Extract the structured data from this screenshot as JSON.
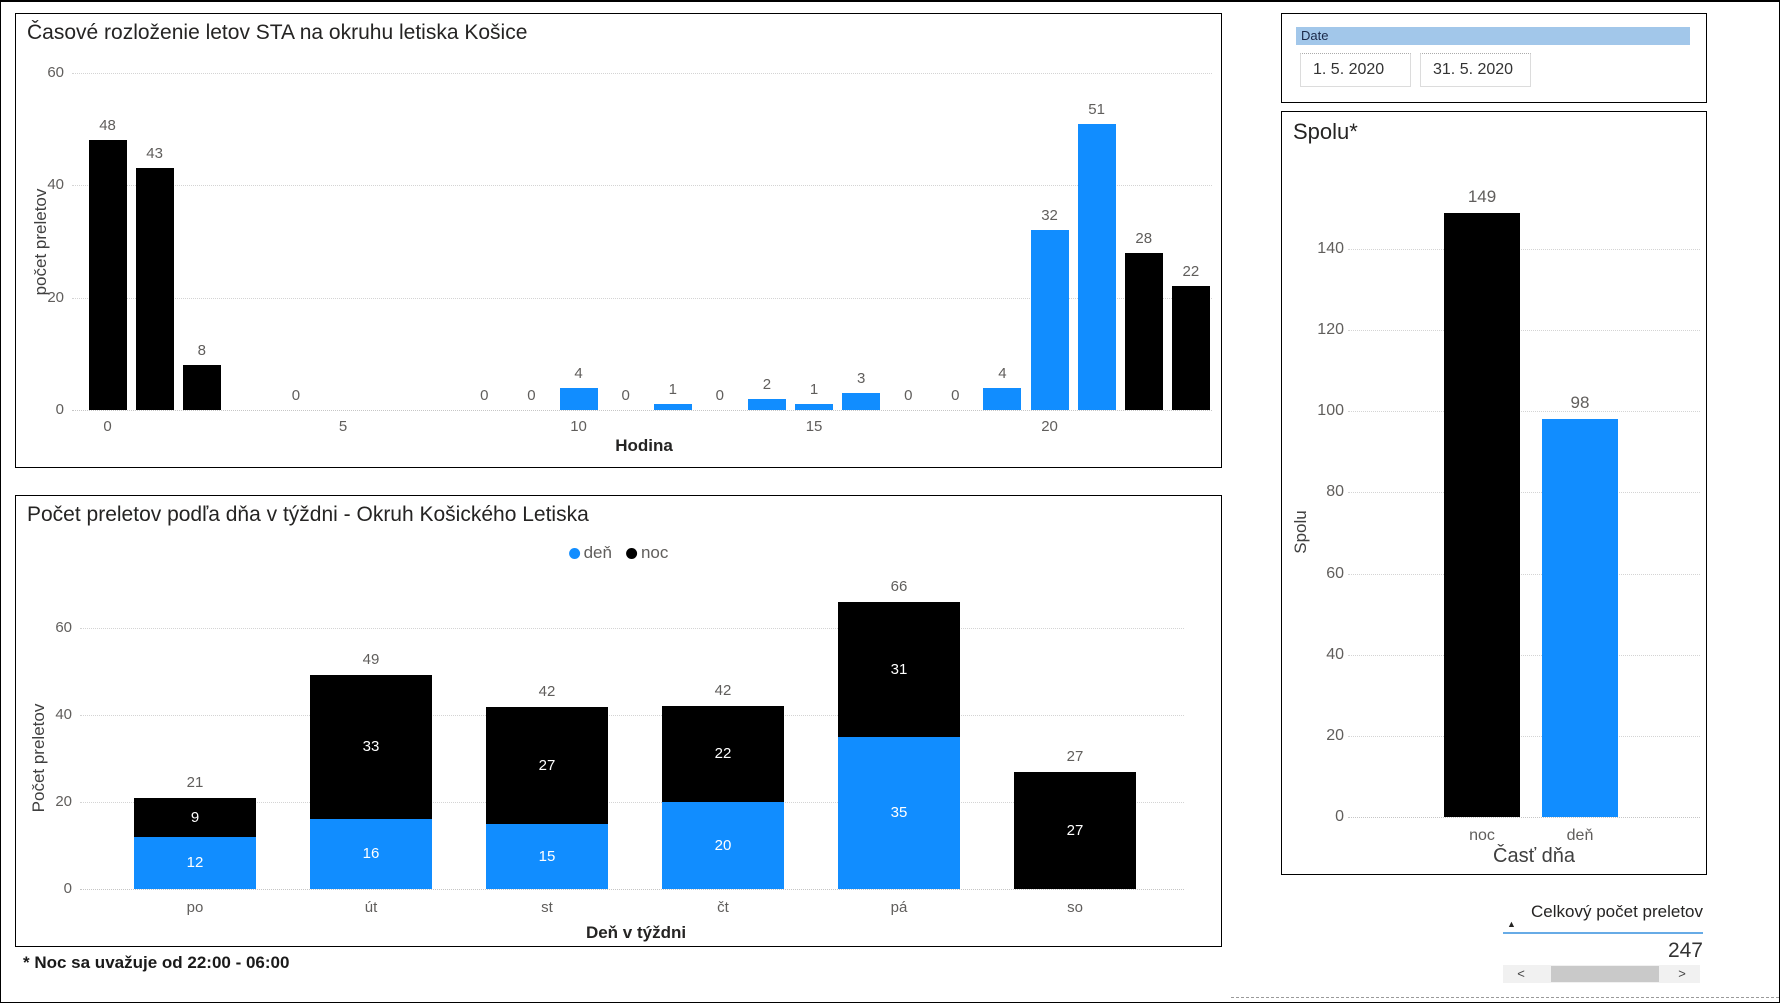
{
  "colors": {
    "den": "#118DFF",
    "noc": "#000000",
    "slicer_header_bg": "#A2C7EA",
    "table_underline": "#67ABE6"
  },
  "date_slicer": {
    "header": "Date",
    "start_date": "1. 5. 2020",
    "end_date": "31. 5. 2020"
  },
  "total_card": {
    "column_header": "Celkový počet preletov",
    "value": "247",
    "sort_indicator": "▲",
    "scroll_left_arrow": "<",
    "scroll_right_arrow": ">"
  },
  "page": {
    "footnote": "* Noc sa uvažuje od 22:00 - 06:00"
  },
  "chart_data": [
    {
      "id": "hourly",
      "type": "bar",
      "title": "Časové rozloženie letov STA na okruhu letiska Košice",
      "xlabel": "Hodina",
      "ylabel": "počet preletov",
      "ylim": [
        0,
        60
      ],
      "yticks": [
        0,
        20,
        40,
        60
      ],
      "xticks": [
        0,
        5,
        10,
        15,
        20
      ],
      "x_slots": 24,
      "grid": true,
      "bars": [
        {
          "hour": 0,
          "value": 48,
          "series": "noc"
        },
        {
          "hour": 1,
          "value": 43,
          "series": "noc"
        },
        {
          "hour": 2,
          "value": 8,
          "series": "noc"
        },
        {
          "hour": 4,
          "value": 0,
          "series": "noc"
        },
        {
          "hour": 8,
          "value": 0,
          "series": "den"
        },
        {
          "hour": 9,
          "value": 0,
          "series": "den"
        },
        {
          "hour": 10,
          "value": 4,
          "series": "den"
        },
        {
          "hour": 11,
          "value": 0,
          "series": "den"
        },
        {
          "hour": 12,
          "value": 1,
          "series": "den"
        },
        {
          "hour": 13,
          "value": 0,
          "series": "den"
        },
        {
          "hour": 14,
          "value": 2,
          "series": "den"
        },
        {
          "hour": 15,
          "value": 1,
          "series": "den"
        },
        {
          "hour": 16,
          "value": 3,
          "series": "den"
        },
        {
          "hour": 17,
          "value": 0,
          "series": "den"
        },
        {
          "hour": 18,
          "value": 0,
          "series": "den"
        },
        {
          "hour": 19,
          "value": 4,
          "series": "den"
        },
        {
          "hour": 20,
          "value": 32,
          "series": "den"
        },
        {
          "hour": 21,
          "value": 51,
          "series": "den"
        },
        {
          "hour": 22,
          "value": 28,
          "series": "noc"
        },
        {
          "hour": 23,
          "value": 22,
          "series": "noc"
        }
      ]
    },
    {
      "id": "weekday",
      "type": "stacked-bar",
      "title": "Počet preletov podľa dňa v týždni - Okruh Košického Letiska",
      "xlabel": "Deň v týždni",
      "ylabel": "Počet preletov",
      "ylim": [
        0,
        66
      ],
      "yticks": [
        0,
        20,
        40,
        60
      ],
      "grid": true,
      "legend": [
        {
          "label": "deň",
          "series": "den"
        },
        {
          "label": "noc",
          "series": "noc"
        }
      ],
      "categories": [
        "po",
        "út",
        "st",
        "čt",
        "pá",
        "so"
      ],
      "series": [
        {
          "name": "deň",
          "series": "den",
          "values": [
            12,
            16,
            15,
            20,
            35,
            0
          ]
        },
        {
          "name": "noc",
          "series": "noc",
          "values": [
            9,
            33,
            27,
            22,
            31,
            27
          ]
        }
      ],
      "totals": [
        21,
        49,
        42,
        42,
        66,
        27
      ]
    },
    {
      "id": "total",
      "type": "bar",
      "title": "Spolu*",
      "xlabel": "Časť dňa",
      "ylabel": "Spolu",
      "ylim": [
        0,
        149
      ],
      "yticks": [
        0,
        20,
        40,
        60,
        80,
        100,
        120,
        140
      ],
      "grid": true,
      "categories": [
        "noc",
        "deň"
      ],
      "values": [
        149,
        98
      ],
      "series_colors": [
        "noc",
        "den"
      ]
    }
  ]
}
